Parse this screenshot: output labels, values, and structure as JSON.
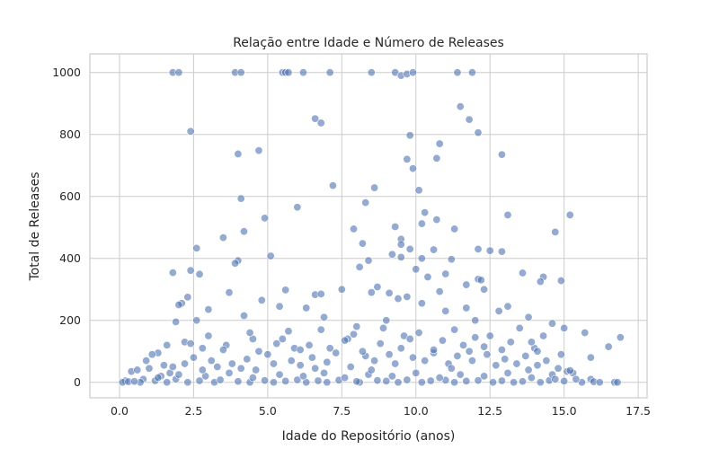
{
  "chart_data": {
    "type": "scatter",
    "title": "Relação entre Idade e Número de Releases",
    "xlabel": "Idade do Repositório (anos)",
    "ylabel": "Total de Releases",
    "xlim": [
      -1.0,
      17.8
    ],
    "ylim": [
      -50,
      1060
    ],
    "xticks": [
      0.0,
      2.5,
      5.0,
      7.5,
      10.0,
      12.5,
      15.0,
      17.5
    ],
    "xtick_labels": [
      "0.0",
      "2.5",
      "5.0",
      "7.5",
      "10.0",
      "12.5",
      "15.0",
      "17.5"
    ],
    "yticks": [
      0,
      200,
      400,
      600,
      800,
      1000
    ],
    "ytick_labels": [
      "0",
      "200",
      "400",
      "600",
      "800",
      "1000"
    ],
    "grid": true,
    "color": "#4c72b0",
    "points": [
      [
        1.8,
        1000
      ],
      [
        2.0,
        1000
      ],
      [
        3.9,
        1000
      ],
      [
        4.1,
        1000
      ],
      [
        5.5,
        1000
      ],
      [
        5.6,
        1000
      ],
      [
        5.7,
        1000
      ],
      [
        6.2,
        1000
      ],
      [
        7.1,
        1000
      ],
      [
        8.5,
        1000
      ],
      [
        9.3,
        1000
      ],
      [
        9.5,
        990
      ],
      [
        9.7,
        995
      ],
      [
        9.9,
        1000
      ],
      [
        11.4,
        1000
      ],
      [
        11.9,
        1000
      ],
      [
        2.4,
        810
      ],
      [
        4.7,
        748
      ],
      [
        4.0,
        737
      ],
      [
        6.6,
        851
      ],
      [
        6.8,
        837
      ],
      [
        9.8,
        797
      ],
      [
        11.5,
        890
      ],
      [
        11.8,
        848
      ],
      [
        12.1,
        806
      ],
      [
        12.9,
        735
      ],
      [
        10.8,
        770
      ],
      [
        10.7,
        723
      ],
      [
        9.7,
        720
      ],
      [
        9.9,
        690
      ],
      [
        7.2,
        635
      ],
      [
        8.6,
        628
      ],
      [
        4.1,
        593
      ],
      [
        10.1,
        620
      ],
      [
        8.3,
        580
      ],
      [
        6.0,
        565
      ],
      [
        10.3,
        548
      ],
      [
        10.7,
        525
      ],
      [
        13.1,
        540
      ],
      [
        15.2,
        540
      ],
      [
        4.9,
        530
      ],
      [
        10.2,
        512
      ],
      [
        9.3,
        502
      ],
      [
        11.3,
        495
      ],
      [
        14.7,
        485
      ],
      [
        7.9,
        495
      ],
      [
        9.5,
        462
      ],
      [
        4.2,
        487
      ],
      [
        3.5,
        467
      ],
      [
        8.2,
        448
      ],
      [
        9.5,
        445
      ],
      [
        9.8,
        430
      ],
      [
        10.6,
        428
      ],
      [
        12.1,
        430
      ],
      [
        12.5,
        425
      ],
      [
        2.6,
        433
      ],
      [
        10.2,
        400
      ],
      [
        11.2,
        397
      ],
      [
        5.1,
        408
      ],
      [
        9.5,
        404
      ],
      [
        8.4,
        393
      ],
      [
        9.2,
        413
      ],
      [
        8.1,
        372
      ],
      [
        12.9,
        422
      ],
      [
        4.0,
        393
      ],
      [
        3.9,
        384
      ],
      [
        2.4,
        361
      ],
      [
        2.7,
        349
      ],
      [
        1.8,
        354
      ],
      [
        10.0,
        365
      ],
      [
        10.4,
        340
      ],
      [
        11.0,
        350
      ],
      [
        13.6,
        353
      ],
      [
        14.3,
        340
      ],
      [
        14.2,
        325
      ],
      [
        14.9,
        328
      ],
      [
        12.1,
        333
      ],
      [
        12.2,
        330
      ],
      [
        11.7,
        315
      ],
      [
        10.8,
        293
      ],
      [
        12.3,
        300
      ],
      [
        8.7,
        308
      ],
      [
        9.7,
        276
      ],
      [
        9.1,
        288
      ],
      [
        5.6,
        298
      ],
      [
        6.6,
        283
      ],
      [
        6.8,
        285
      ],
      [
        2.1,
        255
      ],
      [
        2.0,
        250
      ],
      [
        2.3,
        275
      ],
      [
        3.7,
        290
      ],
      [
        4.8,
        265
      ],
      [
        5.4,
        245
      ],
      [
        7.5,
        300
      ],
      [
        8.5,
        290
      ],
      [
        9.4,
        270
      ],
      [
        13.1,
        245
      ],
      [
        12.8,
        230
      ],
      [
        11.7,
        240
      ],
      [
        11.0,
        230
      ],
      [
        10.2,
        255
      ],
      [
        3.0,
        235
      ],
      [
        6.3,
        240
      ],
      [
        4.2,
        215
      ],
      [
        1.9,
        195
      ],
      [
        2.6,
        200
      ],
      [
        6.9,
        210
      ],
      [
        8.0,
        180
      ],
      [
        9.0,
        200
      ],
      [
        12.0,
        200
      ],
      [
        13.8,
        210
      ],
      [
        14.6,
        190
      ],
      [
        15.0,
        175
      ],
      [
        15.7,
        160
      ],
      [
        16.5,
        115
      ],
      [
        16.9,
        145
      ],
      [
        15.9,
        80
      ],
      [
        14.9,
        90
      ],
      [
        14.0,
        110
      ],
      [
        13.2,
        130
      ],
      [
        12.3,
        115
      ],
      [
        11.6,
        120
      ],
      [
        10.9,
        135
      ],
      [
        9.6,
        150
      ],
      [
        8.8,
        125
      ],
      [
        7.7,
        140
      ],
      [
        6.4,
        120
      ],
      [
        5.9,
        110
      ],
      [
        5.3,
        125
      ],
      [
        4.5,
        140
      ],
      [
        3.6,
        120
      ],
      [
        2.8,
        110
      ],
      [
        1.3,
        95
      ],
      [
        1.1,
        90
      ],
      [
        0.9,
        70
      ],
      [
        0.4,
        35
      ],
      [
        0.6,
        40
      ],
      [
        0.2,
        5
      ],
      [
        0.1,
        0
      ],
      [
        0.3,
        2
      ],
      [
        0.8,
        10
      ],
      [
        1.0,
        45
      ],
      [
        1.5,
        55
      ],
      [
        1.7,
        30
      ],
      [
        1.4,
        20
      ],
      [
        2.2,
        60
      ],
      [
        2.5,
        80
      ],
      [
        3.1,
        70
      ],
      [
        3.3,
        50
      ],
      [
        3.8,
        60
      ],
      [
        4.3,
        75
      ],
      [
        4.6,
        40
      ],
      [
        5.0,
        90
      ],
      [
        5.2,
        60
      ],
      [
        5.8,
        70
      ],
      [
        6.1,
        55
      ],
      [
        6.5,
        80
      ],
      [
        7.0,
        65
      ],
      [
        7.3,
        95
      ],
      [
        7.8,
        50
      ],
      [
        8.3,
        85
      ],
      [
        8.6,
        70
      ],
      [
        9.1,
        90
      ],
      [
        9.3,
        60
      ],
      [
        9.9,
        80
      ],
      [
        10.3,
        70
      ],
      [
        10.6,
        95
      ],
      [
        11.1,
        60
      ],
      [
        11.4,
        85
      ],
      [
        11.9,
        70
      ],
      [
        12.4,
        90
      ],
      [
        12.7,
        55
      ],
      [
        13.0,
        75
      ],
      [
        13.4,
        60
      ],
      [
        13.7,
        85
      ],
      [
        14.1,
        55
      ],
      [
        14.4,
        70
      ],
      [
        14.8,
        45
      ],
      [
        15.1,
        35
      ],
      [
        15.3,
        30
      ],
      [
        15.9,
        10
      ],
      [
        16.0,
        2
      ],
      [
        16.2,
        0
      ],
      [
        16.7,
        0
      ],
      [
        15.6,
        0
      ],
      [
        14.2,
        0
      ],
      [
        13.3,
        0
      ],
      [
        12.6,
        0
      ],
      [
        11.3,
        0
      ],
      [
        10.2,
        0
      ],
      [
        9.4,
        0
      ],
      [
        8.1,
        0
      ],
      [
        7.0,
        0
      ],
      [
        6.3,
        0
      ],
      [
        5.2,
        0
      ],
      [
        4.4,
        0
      ],
      [
        3.2,
        0
      ],
      [
        2.3,
        0
      ],
      [
        1.6,
        0
      ],
      [
        0.7,
        0
      ],
      [
        1.2,
        5
      ],
      [
        1.9,
        10
      ],
      [
        2.7,
        5
      ],
      [
        3.4,
        8
      ],
      [
        4.0,
        3
      ],
      [
        4.9,
        6
      ],
      [
        5.6,
        4
      ],
      [
        6.0,
        8
      ],
      [
        6.7,
        5
      ],
      [
        7.4,
        7
      ],
      [
        8.0,
        3
      ],
      [
        8.7,
        6
      ],
      [
        9.0,
        4
      ],
      [
        9.7,
        8
      ],
      [
        10.5,
        5
      ],
      [
        11.0,
        7
      ],
      [
        11.7,
        4
      ],
      [
        12.1,
        6
      ],
      [
        12.9,
        5
      ],
      [
        13.6,
        3
      ],
      [
        14.5,
        6
      ],
      [
        15.0,
        4
      ],
      [
        1.3,
        15
      ],
      [
        2.0,
        25
      ],
      [
        2.9,
        20
      ],
      [
        3.7,
        30
      ],
      [
        4.5,
        15
      ],
      [
        5.4,
        25
      ],
      [
        6.2,
        20
      ],
      [
        6.9,
        30
      ],
      [
        7.6,
        15
      ],
      [
        8.4,
        25
      ],
      [
        9.2,
        20
      ],
      [
        10.0,
        30
      ],
      [
        10.8,
        15
      ],
      [
        11.5,
        25
      ],
      [
        12.3,
        20
      ],
      [
        13.1,
        30
      ],
      [
        13.9,
        15
      ],
      [
        14.6,
        25
      ],
      [
        15.4,
        10
      ],
      [
        3.0,
        150
      ],
      [
        4.4,
        160
      ],
      [
        5.7,
        165
      ],
      [
        6.8,
        170
      ],
      [
        7.9,
        155
      ],
      [
        8.9,
        175
      ],
      [
        10.1,
        160
      ],
      [
        11.3,
        170
      ],
      [
        12.5,
        150
      ],
      [
        13.5,
        175
      ],
      [
        14.3,
        150
      ],
      [
        2.2,
        130
      ],
      [
        3.5,
        105
      ],
      [
        4.7,
        100
      ],
      [
        6.1,
        105
      ],
      [
        7.1,
        110
      ],
      [
        8.2,
        100
      ],
      [
        9.5,
        110
      ],
      [
        10.6,
        105
      ],
      [
        11.8,
        100
      ],
      [
        12.9,
        105
      ],
      [
        14.1,
        100
      ],
      [
        1.6,
        120
      ],
      [
        2.4,
        125
      ],
      [
        5.5,
        140
      ],
      [
        7.6,
        135
      ],
      [
        9.8,
        140
      ],
      [
        12.0,
        145
      ],
      [
        13.9,
        130
      ],
      [
        0.5,
        3
      ],
      [
        16.8,
        0
      ],
      [
        15.2,
        38
      ],
      [
        14.7,
        10
      ],
      [
        13.8,
        40
      ],
      [
        11.2,
        45
      ],
      [
        8.5,
        40
      ],
      [
        6.6,
        45
      ],
      [
        4.1,
        45
      ],
      [
        2.8,
        40
      ],
      [
        1.8,
        50
      ]
    ]
  }
}
